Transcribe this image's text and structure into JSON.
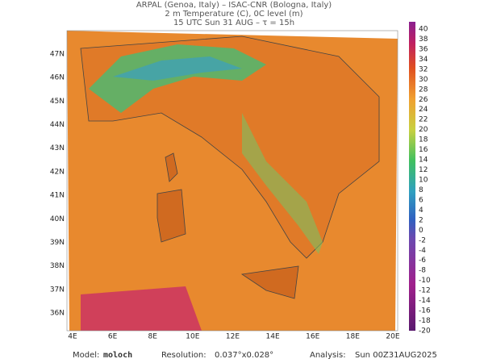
{
  "header": {
    "lines": [
      "ARPAL (Genoa, Italy)  –  ISAC-CNR (Bologna, Italy)",
      "2 m Temperature (C), 0C level (m)",
      "15 UTC Sun 31 AUG  –  τ = 15h"
    ]
  },
  "map": {
    "lon_labels": [
      "4E",
      "6E",
      "8E",
      "10E",
      "12E",
      "14E",
      "16E",
      "18E",
      "20E"
    ],
    "lat_labels": [
      "47N",
      "46N",
      "45N",
      "44N",
      "43N",
      "42N",
      "41N",
      "40N",
      "39N",
      "38N",
      "37N",
      "36N"
    ]
  },
  "colorbar": {
    "labels": [
      40,
      38,
      36,
      34,
      32,
      30,
      28,
      26,
      24,
      22,
      20,
      18,
      16,
      14,
      12,
      10,
      8,
      6,
      4,
      2,
      0,
      -2,
      -4,
      -6,
      -8,
      -10,
      -12,
      -14,
      -16,
      -18,
      -20
    ]
  },
  "footer": {
    "model_label": "Model:",
    "model": "moloch",
    "resolution_label": "Resolution:",
    "resolution": "0.037°x0.028°",
    "analysis_label": "Analysis:",
    "analysis": "Sun 00Z31AUG2025"
  }
}
